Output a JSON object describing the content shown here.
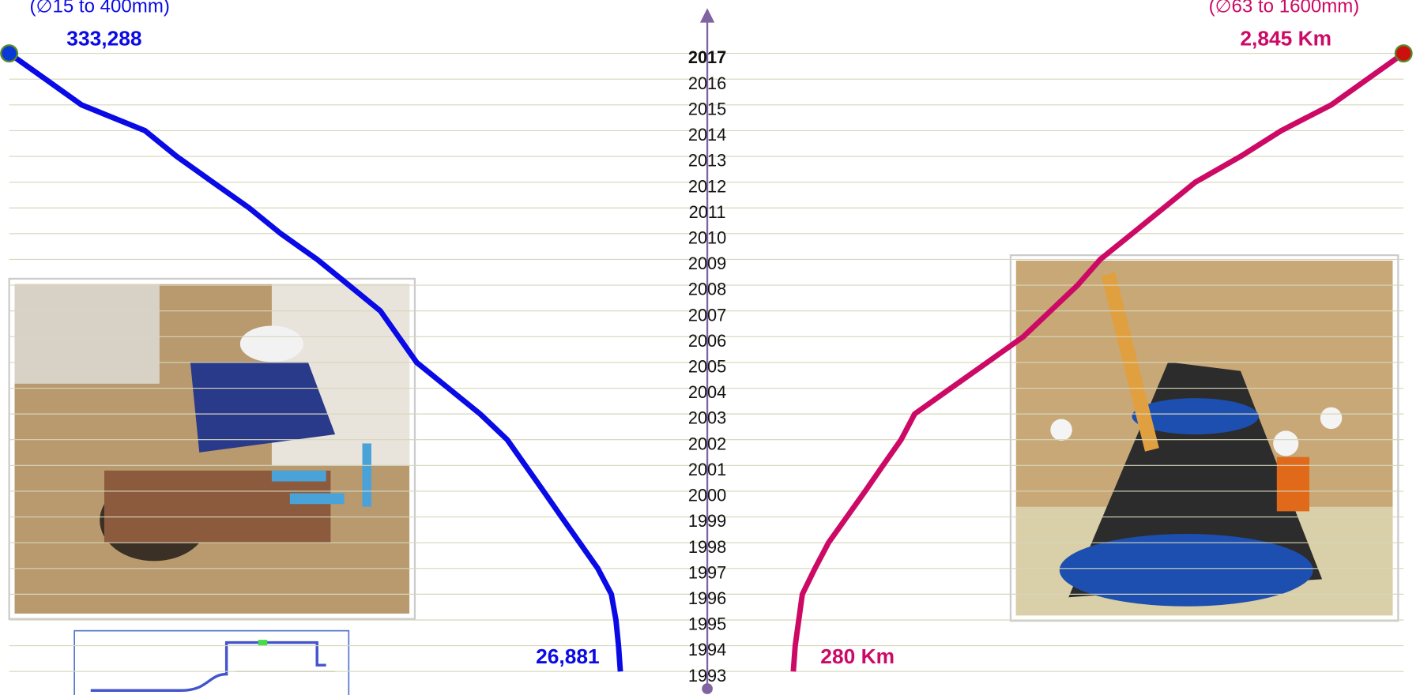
{
  "chart_data": {
    "type": "line",
    "subtitles": [
      "(∅15 to 400mm)",
      "(∅63 to 1600mm)"
    ],
    "categories": [
      "1993",
      "1994",
      "1995",
      "1996",
      "1997",
      "1998",
      "1999",
      "2000",
      "2001",
      "2002",
      "2003",
      "2004",
      "2005",
      "2006",
      "2007",
      "2008",
      "2009",
      "2010",
      "2011",
      "2012",
      "2013",
      "2014",
      "2015",
      "2016",
      "2017"
    ],
    "series": [
      {
        "color": "#0a0ae6",
        "side": "left",
        "values": [
          26881,
          27800,
          29100,
          31400,
          38200,
          47300,
          56400,
          65400,
          74500,
          83600,
          97200,
          113100,
          129000,
          138100,
          147200,
          163000,
          178900,
          197100,
          213000,
          231200,
          249300,
          265200,
          297000,
          315100,
          333288
        ],
        "value_labels": [
          "26,881",
          null,
          null,
          null,
          null,
          null,
          null,
          null,
          null,
          null,
          null,
          null,
          null,
          null,
          null,
          null,
          null,
          null,
          null,
          null,
          null,
          null,
          null,
          null,
          "333,288"
        ]
      },
      {
        "color": "#cc0a66",
        "side": "right",
        "values": [
          280,
          288,
          303,
          318,
          371,
          428,
          505,
          582,
          657,
          733,
          790,
          942,
          1095,
          1247,
          1361,
          1475,
          1570,
          1704,
          1837,
          1970,
          2160,
          2331,
          2541,
          2693,
          2845
        ],
        "value_labels": [
          "280 Km",
          null,
          null,
          null,
          null,
          null,
          null,
          null,
          null,
          null,
          null,
          null,
          null,
          null,
          null,
          null,
          null,
          null,
          null,
          null,
          null,
          null,
          null,
          null,
          "2,845 Km"
        ]
      }
    ]
  }
}
